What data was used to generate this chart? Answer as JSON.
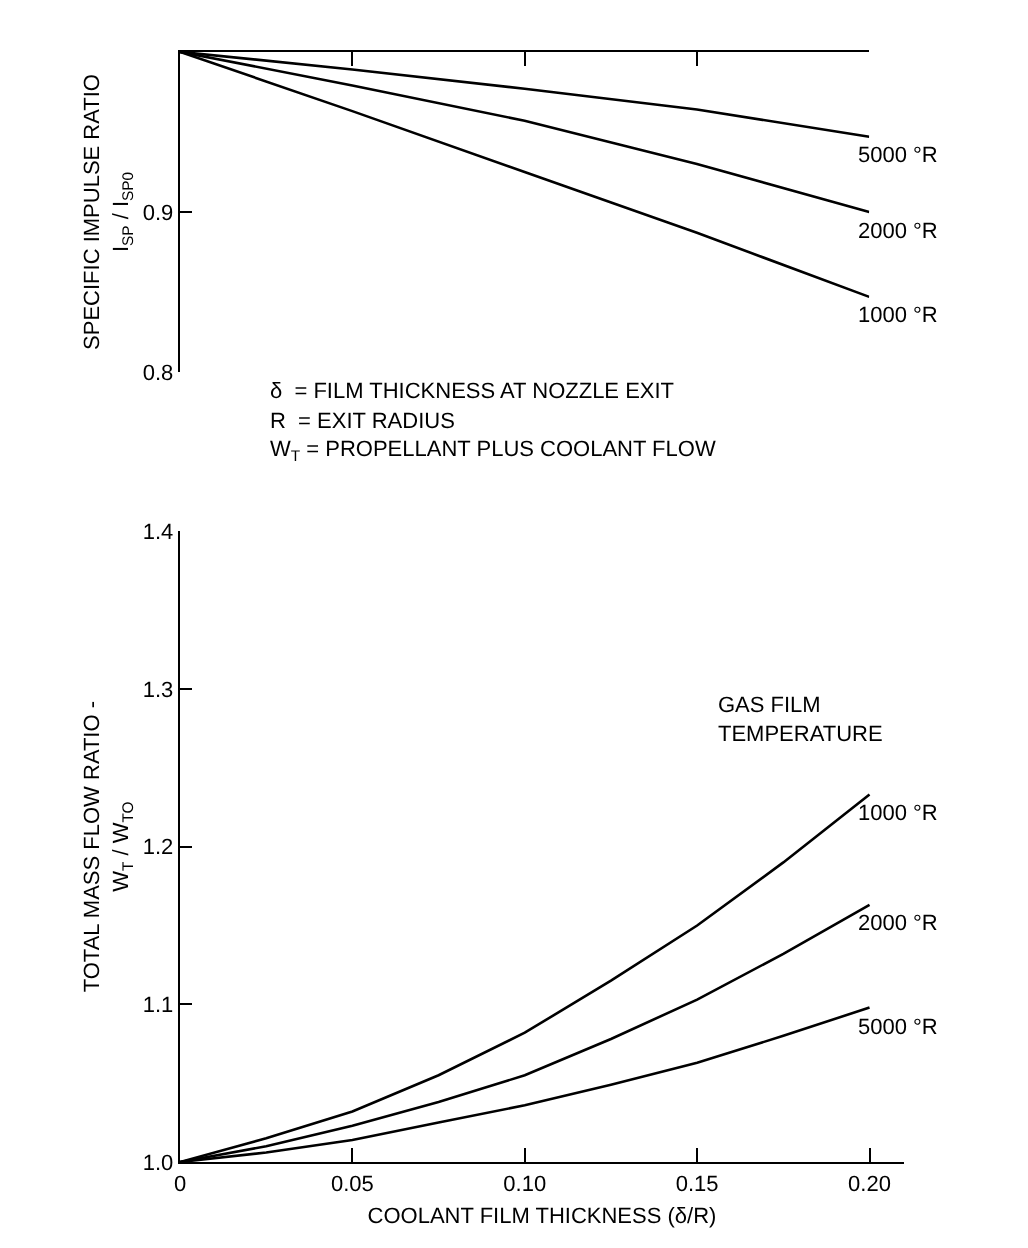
{
  "chart_data": [
    {
      "type": "line",
      "categories": [
        null,
        null,
        null,
        null,
        null
      ],
      "ylabel": "SPECIFIC IMPULSE RATIO\nI$_{SP}$ / I$_{SP0}$",
      "series": [
        {
          "name": "5000 °R",
          "color": "#000000",
          "values": [
            1.0,
            0.989,
            0.977,
            0.964,
            0.947
          ]
        },
        {
          "name": "2000 °R",
          "color": "#000000",
          "values": [
            1.0,
            0.979,
            0.957,
            0.93,
            0.9
          ]
        },
        {
          "name": "1000 °R",
          "color": "#000000",
          "values": [
            1.0,
            0.963,
            0.925,
            0.887,
            0.847
          ]
        }
      ],
      "ylim": [
        0.8,
        1.0
      ],
      "yticks": [
        0.8,
        0.9
      ],
      "tick_labels": "y"
    },
    {
      "type": "line",
      "x": [
        0,
        0.025,
        0.05,
        0.075,
        0.1,
        0.125,
        0.15,
        0.175,
        0.2
      ],
      "xlabel": "COOLANT FILM THICKNESS (δ/R)",
      "ylabel": "TOTAL MASS FLOW RATIO -\nW$_{T}$ / W$_{TO}$",
      "legend_title": "GAS FILM\nTEMPERATURE",
      "series": [
        {
          "name": "1000 °R",
          "color": "#000000",
          "values": [
            1.0,
            1.015,
            1.032,
            1.055,
            1.082,
            1.115,
            1.15,
            1.19,
            1.233
          ]
        },
        {
          "name": "2000 °R",
          "color": "#000000",
          "values": [
            1.0,
            1.01,
            1.023,
            1.038,
            1.055,
            1.078,
            1.103,
            1.132,
            1.163
          ]
        },
        {
          "name": "5000 °R",
          "color": "#000000",
          "values": [
            1.0,
            1.006,
            1.014,
            1.025,
            1.036,
            1.049,
            1.063,
            1.08,
            1.098
          ]
        }
      ],
      "xlim": [
        0,
        0.21
      ],
      "xticks": [
        {
          "value": 0,
          "label": "0"
        },
        {
          "value": 0.05,
          "label": "0.05"
        },
        {
          "value": 0.1,
          "label": "0.10"
        },
        {
          "value": 0.15,
          "label": "0.15"
        },
        {
          "value": 0.2,
          "label": "0.20"
        }
      ],
      "ylim": [
        1.0,
        1.4
      ],
      "yticks": [
        {
          "value": 1.0,
          "label": "1.0"
        },
        1.1,
        1.2,
        1.3,
        1.4
      ],
      "annotations": [
        "δ  = FILM THICKNESS AT NOZZLE EXIT",
        "R  = EXIT RADIUS",
        "W$_{T}$ = PROPELLANT PLUS COOLANT FLOW"
      ]
    }
  ]
}
